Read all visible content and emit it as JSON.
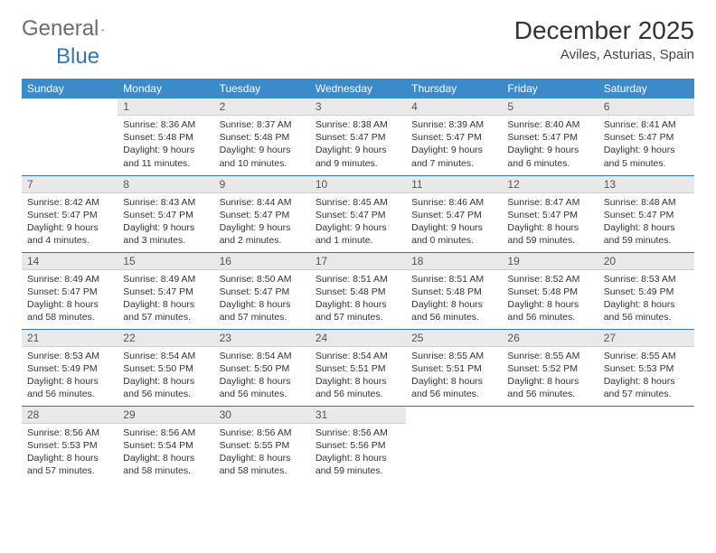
{
  "brand": {
    "name": "General",
    "suffix": "Blue"
  },
  "title": "December 2025",
  "location": "Aviles, Asturias, Spain",
  "colors": {
    "header_bg": "#3b8bca",
    "header_text": "#ffffff",
    "daynum_bg": "#e9e9e9",
    "rule": "#2f77b8",
    "brand_accent": "#2f77b8",
    "body_text": "#333333"
  },
  "weekdays": [
    "Sunday",
    "Monday",
    "Tuesday",
    "Wednesday",
    "Thursday",
    "Friday",
    "Saturday"
  ],
  "typography": {
    "title_fontsize": 28,
    "location_fontsize": 15,
    "weekday_fontsize": 12,
    "body_fontsize": 10.5
  },
  "grid": {
    "rows": 5,
    "cols": 7,
    "first_weekday_index": 1,
    "days_in_month": 31
  },
  "days": [
    {
      "n": 1,
      "sunrise": "8:36 AM",
      "sunset": "5:48 PM",
      "daylight": "9 hours and 11 minutes."
    },
    {
      "n": 2,
      "sunrise": "8:37 AM",
      "sunset": "5:48 PM",
      "daylight": "9 hours and 10 minutes."
    },
    {
      "n": 3,
      "sunrise": "8:38 AM",
      "sunset": "5:47 PM",
      "daylight": "9 hours and 9 minutes."
    },
    {
      "n": 4,
      "sunrise": "8:39 AM",
      "sunset": "5:47 PM",
      "daylight": "9 hours and 7 minutes."
    },
    {
      "n": 5,
      "sunrise": "8:40 AM",
      "sunset": "5:47 PM",
      "daylight": "9 hours and 6 minutes."
    },
    {
      "n": 6,
      "sunrise": "8:41 AM",
      "sunset": "5:47 PM",
      "daylight": "9 hours and 5 minutes."
    },
    {
      "n": 7,
      "sunrise": "8:42 AM",
      "sunset": "5:47 PM",
      "daylight": "9 hours and 4 minutes."
    },
    {
      "n": 8,
      "sunrise": "8:43 AM",
      "sunset": "5:47 PM",
      "daylight": "9 hours and 3 minutes."
    },
    {
      "n": 9,
      "sunrise": "8:44 AM",
      "sunset": "5:47 PM",
      "daylight": "9 hours and 2 minutes."
    },
    {
      "n": 10,
      "sunrise": "8:45 AM",
      "sunset": "5:47 PM",
      "daylight": "9 hours and 1 minute."
    },
    {
      "n": 11,
      "sunrise": "8:46 AM",
      "sunset": "5:47 PM",
      "daylight": "9 hours and 0 minutes."
    },
    {
      "n": 12,
      "sunrise": "8:47 AM",
      "sunset": "5:47 PM",
      "daylight": "8 hours and 59 minutes."
    },
    {
      "n": 13,
      "sunrise": "8:48 AM",
      "sunset": "5:47 PM",
      "daylight": "8 hours and 59 minutes."
    },
    {
      "n": 14,
      "sunrise": "8:49 AM",
      "sunset": "5:47 PM",
      "daylight": "8 hours and 58 minutes."
    },
    {
      "n": 15,
      "sunrise": "8:49 AM",
      "sunset": "5:47 PM",
      "daylight": "8 hours and 57 minutes."
    },
    {
      "n": 16,
      "sunrise": "8:50 AM",
      "sunset": "5:47 PM",
      "daylight": "8 hours and 57 minutes."
    },
    {
      "n": 17,
      "sunrise": "8:51 AM",
      "sunset": "5:48 PM",
      "daylight": "8 hours and 57 minutes."
    },
    {
      "n": 18,
      "sunrise": "8:51 AM",
      "sunset": "5:48 PM",
      "daylight": "8 hours and 56 minutes."
    },
    {
      "n": 19,
      "sunrise": "8:52 AM",
      "sunset": "5:48 PM",
      "daylight": "8 hours and 56 minutes."
    },
    {
      "n": 20,
      "sunrise": "8:53 AM",
      "sunset": "5:49 PM",
      "daylight": "8 hours and 56 minutes."
    },
    {
      "n": 21,
      "sunrise": "8:53 AM",
      "sunset": "5:49 PM",
      "daylight": "8 hours and 56 minutes."
    },
    {
      "n": 22,
      "sunrise": "8:54 AM",
      "sunset": "5:50 PM",
      "daylight": "8 hours and 56 minutes."
    },
    {
      "n": 23,
      "sunrise": "8:54 AM",
      "sunset": "5:50 PM",
      "daylight": "8 hours and 56 minutes."
    },
    {
      "n": 24,
      "sunrise": "8:54 AM",
      "sunset": "5:51 PM",
      "daylight": "8 hours and 56 minutes."
    },
    {
      "n": 25,
      "sunrise": "8:55 AM",
      "sunset": "5:51 PM",
      "daylight": "8 hours and 56 minutes."
    },
    {
      "n": 26,
      "sunrise": "8:55 AM",
      "sunset": "5:52 PM",
      "daylight": "8 hours and 56 minutes."
    },
    {
      "n": 27,
      "sunrise": "8:55 AM",
      "sunset": "5:53 PM",
      "daylight": "8 hours and 57 minutes."
    },
    {
      "n": 28,
      "sunrise": "8:56 AM",
      "sunset": "5:53 PM",
      "daylight": "8 hours and 57 minutes."
    },
    {
      "n": 29,
      "sunrise": "8:56 AM",
      "sunset": "5:54 PM",
      "daylight": "8 hours and 58 minutes."
    },
    {
      "n": 30,
      "sunrise": "8:56 AM",
      "sunset": "5:55 PM",
      "daylight": "8 hours and 58 minutes."
    },
    {
      "n": 31,
      "sunrise": "8:56 AM",
      "sunset": "5:56 PM",
      "daylight": "8 hours and 59 minutes."
    }
  ],
  "labels": {
    "sunrise": "Sunrise:",
    "sunset": "Sunset:",
    "daylight": "Daylight:"
  }
}
